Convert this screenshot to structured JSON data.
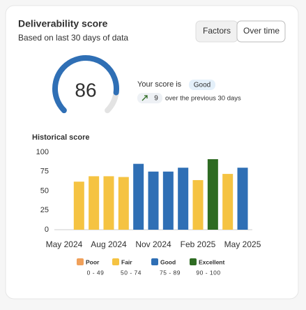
{
  "header": {
    "title": "Deliverability score",
    "subtitle": "Based on last 30 days of data"
  },
  "tabs": [
    "Factors",
    "Over time"
  ],
  "score": {
    "value": 86,
    "label": "Your score is",
    "rating": "Good",
    "change": 9,
    "change_note": "over the previous 30 days"
  },
  "chart_data": {
    "type": "bar",
    "title": "Historical score",
    "categories": [
      "May 2024",
      null,
      null,
      "Aug 2024",
      null,
      null,
      "Nov 2024",
      null,
      null,
      "Feb 2025",
      null,
      null,
      "May 2025"
    ],
    "values": [
      null,
      62,
      69,
      69,
      68,
      85,
      75,
      75,
      80,
      64,
      91,
      72,
      80
    ],
    "colors": [
      null,
      "#f5c342",
      "#f5c342",
      "#f5c342",
      "#f5c342",
      "#2f6fb5",
      "#2f6fb5",
      "#2f6fb5",
      "#2f6fb5",
      "#f5c342",
      "#2e6b22",
      "#f5c342",
      "#2f6fb5"
    ],
    "ylim": [
      0,
      100
    ],
    "yticks": [
      0,
      25,
      50,
      75,
      100
    ],
    "grid": false,
    "legend": [
      {
        "name": "Poor",
        "range": "0 - 49",
        "color": "#f0a05a"
      },
      {
        "name": "Fair",
        "range": "50 - 74",
        "color": "#f5c342"
      },
      {
        "name": "Good",
        "range": "75 - 89",
        "color": "#2f6fb5"
      },
      {
        "name": "Excellent",
        "range": "90 - 100",
        "color": "#2e6b22"
      }
    ]
  }
}
